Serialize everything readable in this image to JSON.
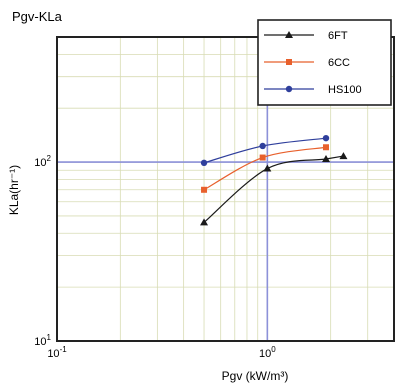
{
  "chart_data": {
    "type": "line",
    "title": "Pgv-KLa",
    "xlabel": "Pgv (kW/m³)",
    "ylabel": "KLa(hr⁻¹)",
    "xscale": "log",
    "yscale": "log",
    "xlim": [
      0.1,
      4
    ],
    "ylim": [
      10,
      500
    ],
    "grid": true,
    "legend_position": "top-right",
    "x_ticks": [
      {
        "value": 0.1,
        "mantissa": "10",
        "exp": "-1"
      },
      {
        "value": 1,
        "mantissa": "10",
        "exp": "0"
      }
    ],
    "y_ticks": [
      {
        "value": 10,
        "mantissa": "10",
        "exp": "1"
      },
      {
        "value": 100,
        "mantissa": "10",
        "exp": "2"
      }
    ],
    "series": [
      {
        "name": "6FT",
        "color": "#1a1a1a",
        "marker": "triangle",
        "x": [
          0.5,
          1.0,
          1.9,
          2.3
        ],
        "y": [
          46,
          92,
          104,
          108
        ]
      },
      {
        "name": "6CC",
        "color": "#e8602c",
        "marker": "square",
        "x": [
          0.5,
          0.95,
          1.9
        ],
        "y": [
          70,
          106,
          121
        ]
      },
      {
        "name": "HS100",
        "color": "#2f3f9c",
        "marker": "circle",
        "x": [
          0.5,
          0.95,
          1.9
        ],
        "y": [
          99,
          123,
          136
        ]
      }
    ]
  }
}
